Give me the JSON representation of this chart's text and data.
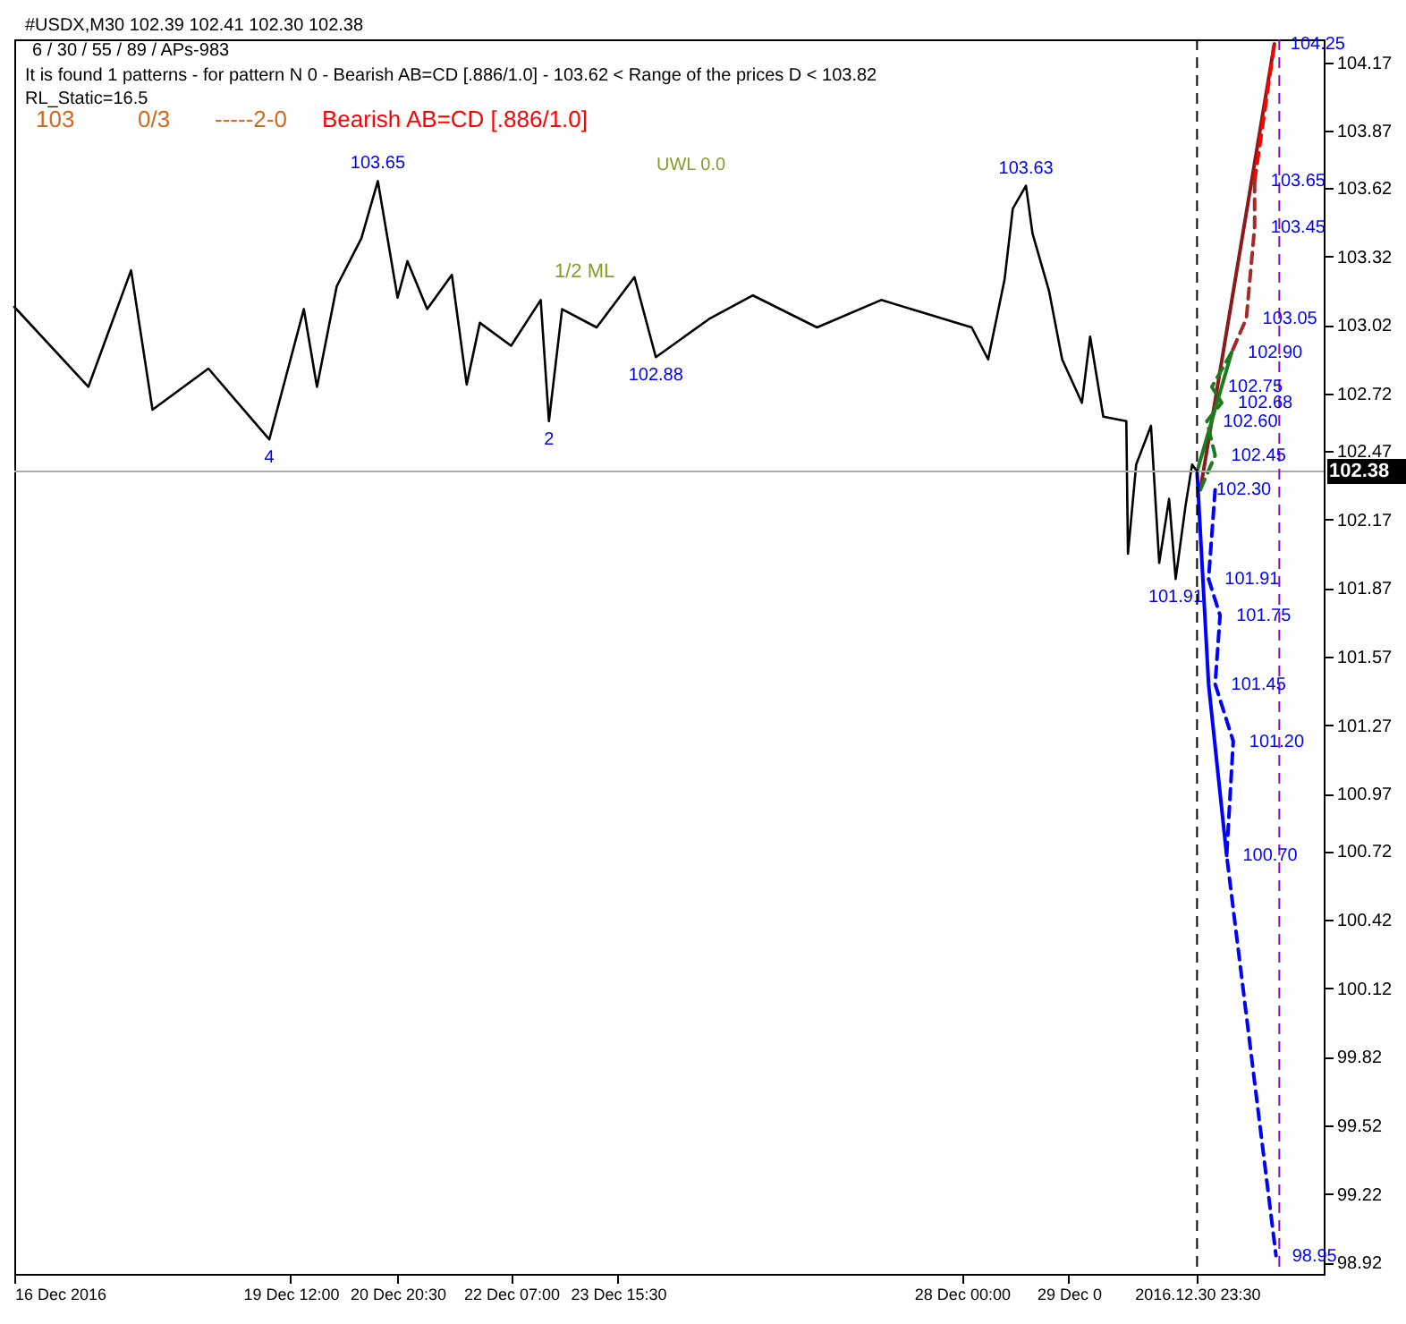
{
  "chart_data": {
    "type": "line",
    "title": "#USDX,M30  102.39 102.41 102.30 102.38",
    "subtitle": "6 / 30 / 55 / 89 / APs-983",
    "xlim": [
      "2016-12-16T00:00",
      "2017-01-01T14:00"
    ],
    "ylim": [
      98.87,
      104.27
    ],
    "xticks": [
      {
        "value": "2016-12-16T00:00",
        "label": "16 Dec 2016"
      },
      {
        "value": "2016-12-19T12:00",
        "label": "19 Dec 12:00"
      },
      {
        "value": "2016-12-20T20:30",
        "label": "20 Dec 20:30"
      },
      {
        "value": "2016-12-22T07:00",
        "label": "22 Dec 07:00"
      },
      {
        "value": "2016-12-23T15:30",
        "label": "23 Dec 15:30"
      },
      {
        "value": "2016-12-28T00:00",
        "label": "28 Dec 00:00"
      },
      {
        "value": "2016-12-29T08:30",
        "label": "29 Dec 0"
      },
      {
        "value": "2016-12-30T23:30",
        "label": "2016.12.30 23:30"
      }
    ],
    "yticks": [
      104.17,
      103.87,
      103.62,
      103.32,
      103.02,
      102.72,
      102.47,
      102.17,
      101.87,
      101.57,
      101.27,
      100.97,
      100.72,
      100.42,
      100.12,
      99.82,
      99.52,
      99.22,
      98.92
    ],
    "series": [
      {
        "color": "#000000",
        "line_style": "solid",
        "x": [
          "2016-12-16T00:00",
          "2016-12-16T22:30",
          "2016-12-17T11:30",
          "2016-12-17T18:00",
          "2016-12-18T11:00",
          "2016-12-19T05:30",
          "2016-12-19T16:00",
          "2016-12-19T20:00",
          "2016-12-20T02:00",
          "2016-12-20T09:30",
          "2016-12-20T14:30",
          "2016-12-20T20:30",
          "2016-12-20T23:30",
          "2016-12-21T05:30",
          "2016-12-21T13:00",
          "2016-12-21T17:30",
          "2016-12-21T21:30",
          "2016-12-22T07:00",
          "2016-12-22T16:00",
          "2016-12-22T18:30",
          "2016-12-22T22:30",
          "2016-12-23T09:00",
          "2016-12-23T20:30",
          "2016-12-24T03:00",
          "2016-12-24T19:30",
          "2016-12-25T08:30",
          "2016-12-26T04:00",
          "2016-12-26T23:30",
          "2016-12-28T03:00",
          "2016-12-28T08:00",
          "2016-12-28T13:00",
          "2016-12-28T15:30",
          "2016-12-28T19:30",
          "2016-12-28T21:30",
          "2016-12-29T02:30",
          "2016-12-29T06:30",
          "2016-12-29T12:30",
          "2016-12-29T15:00",
          "2016-12-29T19:00",
          "2016-12-30T02:00",
          "2016-12-30T02:30",
          "2016-12-30T05:00",
          "2016-12-30T09:30",
          "2016-12-30T12:00",
          "2016-12-30T15:00",
          "2016-12-30T17:00",
          "2016-12-30T20:00",
          "2016-12-30T22:00",
          "2016-12-30T23:30"
        ],
        "values": [
          103.1,
          102.75,
          103.26,
          102.65,
          102.83,
          102.52,
          103.09,
          102.75,
          103.19,
          103.4,
          103.65,
          103.14,
          103.3,
          103.09,
          103.24,
          102.76,
          103.03,
          102.93,
          103.13,
          102.6,
          103.09,
          103.01,
          103.23,
          102.88,
          103.05,
          103.15,
          103.01,
          103.13,
          103.01,
          102.87,
          103.22,
          103.53,
          103.63,
          103.42,
          103.17,
          102.87,
          102.68,
          102.97,
          102.62,
          102.6,
          102.02,
          102.41,
          102.58,
          101.98,
          102.26,
          101.91,
          102.23,
          102.41,
          102.38
        ]
      },
      {
        "color": "#8b1a1a",
        "line_style": "solid",
        "x": [
          "2016-12-31T00:30",
          "2016-12-31T23:00"
        ],
        "values": [
          102.3,
          104.25
        ]
      },
      {
        "color": "#ff0000",
        "line_style": "dashed",
        "x": [
          "2016-12-31T17:00",
          "2016-12-31T23:00"
        ],
        "values": [
          103.65,
          104.25
        ]
      },
      {
        "color": "#a52a2a",
        "line_style": "dashed",
        "x": [
          "2016-12-31T17:00",
          "2016-12-31T17:00",
          "2016-12-31T14:30",
          "2016-12-31T10:00"
        ],
        "values": [
          103.65,
          103.45,
          103.05,
          102.9
        ]
      },
      {
        "color": "#1e7a1e",
        "line_style": "solid",
        "x": [
          "2016-12-30T23:30",
          "2016-12-31T10:00"
        ],
        "values": [
          102.38,
          102.9
        ]
      },
      {
        "color": "#1e7a1e",
        "line_style": "dashed",
        "x": [
          "2016-12-31T10:00",
          "2016-12-31T04:00",
          "2016-12-31T07:00",
          "2016-12-31T02:30",
          "2016-12-31T05:00",
          "2016-12-31T00:30"
        ],
        "values": [
          102.9,
          102.75,
          102.68,
          102.6,
          102.45,
          102.3
        ]
      },
      {
        "color": "#0000ff",
        "line_style": "solid",
        "x": [
          "2016-12-30T23:30",
          "2016-12-31T03:00",
          "2016-12-31T08:30"
        ],
        "values": [
          102.38,
          101.45,
          100.7
        ]
      },
      {
        "color": "#0000ff",
        "line_style": "dashed",
        "x": [
          "2016-12-31T05:00",
          "2016-12-31T03:00",
          "2016-12-31T06:30",
          "2016-12-31T05:00",
          "2016-12-31T10:30",
          "2016-12-31T08:30",
          "2016-12-31T23:30"
        ],
        "values": [
          102.3,
          101.91,
          101.75,
          101.45,
          101.2,
          100.7,
          98.95
        ]
      }
    ],
    "ref_lines": [
      {
        "axis": "y",
        "value": 102.38,
        "label": "102.38",
        "color": "#aaaaaa",
        "line_style": "solid"
      },
      {
        "axis": "x",
        "value": "2016-12-30T23:30",
        "color": "#000000",
        "line_style": "dashed"
      },
      {
        "axis": "x",
        "value": "2017-01-01T00:30",
        "color": "#9900cc",
        "line_style": "dashed"
      }
    ],
    "annotations": [
      "It is found 1 patterns  -  for pattern N 0 - Bearish AB=CD [.886/1.0] - 103.62 < Range of the prices D < 103.82",
      "RL_Static=16.5",
      "103",
      "0/3",
      "-----2-0",
      "Bearish AB=CD [.886/1.0]",
      "1/2 ML",
      "UWL 0.0",
      {
        "text": "103.65",
        "x": "2016-12-20T14:30",
        "y": 103.65
      },
      {
        "text": "103.63",
        "x": "2016-12-28T19:30",
        "y": 103.63
      },
      {
        "text": "102.88",
        "x": "2016-12-24T03:00",
        "y": 102.88
      },
      {
        "text": "101.91",
        "x": "2016-12-30T17:00",
        "y": 101.91
      },
      {
        "text": "4",
        "x": "2016-12-19T05:30",
        "y": 102.52
      },
      {
        "text": "2",
        "x": "2016-12-22T18:30",
        "y": 102.6
      },
      {
        "text": "104.25",
        "x": "2016-12-31T23:00",
        "y": 104.25
      },
      {
        "text": "103.65",
        "x": "2016-12-31T17:00",
        "y": 103.65
      },
      {
        "text": "103.45",
        "x": "2016-12-31T17:00",
        "y": 103.45
      },
      {
        "text": "103.05",
        "x": "2016-12-31T14:30",
        "y": 103.05
      },
      {
        "text": "102.90",
        "x": "2016-12-31T10:00",
        "y": 102.9
      },
      {
        "text": "102.75",
        "x": "2016-12-31T04:00",
        "y": 102.75
      },
      {
        "text": "102.68",
        "x": "2016-12-31T07:00",
        "y": 102.68
      },
      {
        "text": "102.60",
        "x": "2016-12-31T02:30",
        "y": 102.6
      },
      {
        "text": "102.45",
        "x": "2016-12-31T05:00",
        "y": 102.45
      },
      {
        "text": "102.30",
        "x": "2016-12-31T00:30",
        "y": 102.3
      },
      {
        "text": "101.91",
        "x": "2016-12-31T03:00",
        "y": 101.91
      },
      {
        "text": "101.75",
        "x": "2016-12-31T06:30",
        "y": 101.75
      },
      {
        "text": "101.45",
        "x": "2016-12-31T05:00",
        "y": 101.45
      },
      {
        "text": "101.20",
        "x": "2016-12-31T10:30",
        "y": 101.2
      },
      {
        "text": "100.70",
        "x": "2016-12-31T08:30",
        "y": 100.7
      },
      {
        "text": "98.95",
        "x": "2016-12-31T23:30",
        "y": 98.95
      }
    ]
  }
}
